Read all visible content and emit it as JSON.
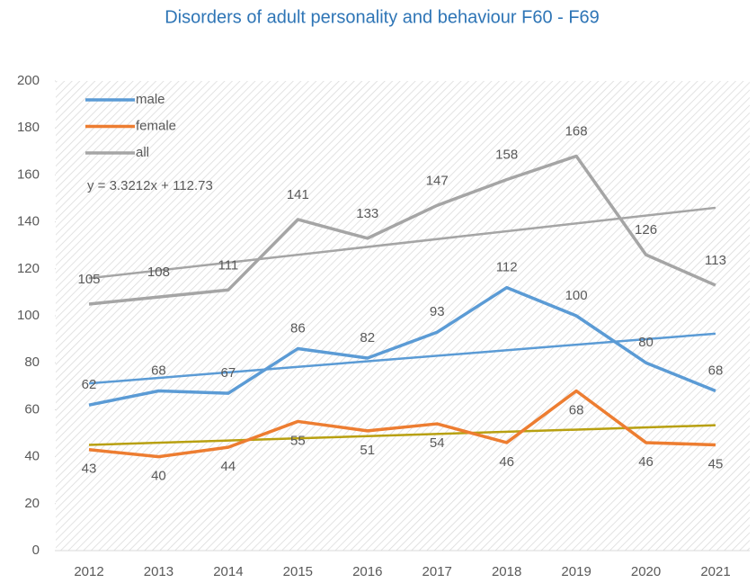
{
  "chart_data": {
    "type": "line",
    "title": "Disorders of adult personality and behaviour F60 - F69",
    "categories": [
      "2012",
      "2013",
      "2014",
      "2015",
      "2016",
      "2017",
      "2018",
      "2019",
      "2020",
      "2021"
    ],
    "series": [
      {
        "name": "male",
        "color": "#5b9bd5",
        "values": [
          62,
          68,
          67,
          86,
          82,
          93,
          112,
          100,
          80,
          68
        ]
      },
      {
        "name": "female",
        "color": "#ed7d31",
        "values": [
          43,
          40,
          44,
          55,
          51,
          54,
          46,
          68,
          46,
          45
        ]
      },
      {
        "name": "all",
        "color": "#a5a5a5",
        "values": [
          105,
          108,
          111,
          141,
          133,
          147,
          158,
          168,
          126,
          113
        ]
      }
    ],
    "trendlines": [
      {
        "color": "#5b9bd5",
        "values": [
          71.2,
          92.4
        ]
      },
      {
        "color": "#b8a010",
        "values": [
          45,
          53.4
        ]
      },
      {
        "color": "#a5a5a5",
        "values": [
          116,
          146
        ]
      }
    ],
    "annotations": [
      "y = 3.3212x + 112.73"
    ],
    "ylim": [
      0,
      200
    ],
    "yticks": [
      0,
      20,
      40,
      60,
      80,
      100,
      120,
      140,
      160,
      180,
      200
    ],
    "legend": "top-left"
  }
}
